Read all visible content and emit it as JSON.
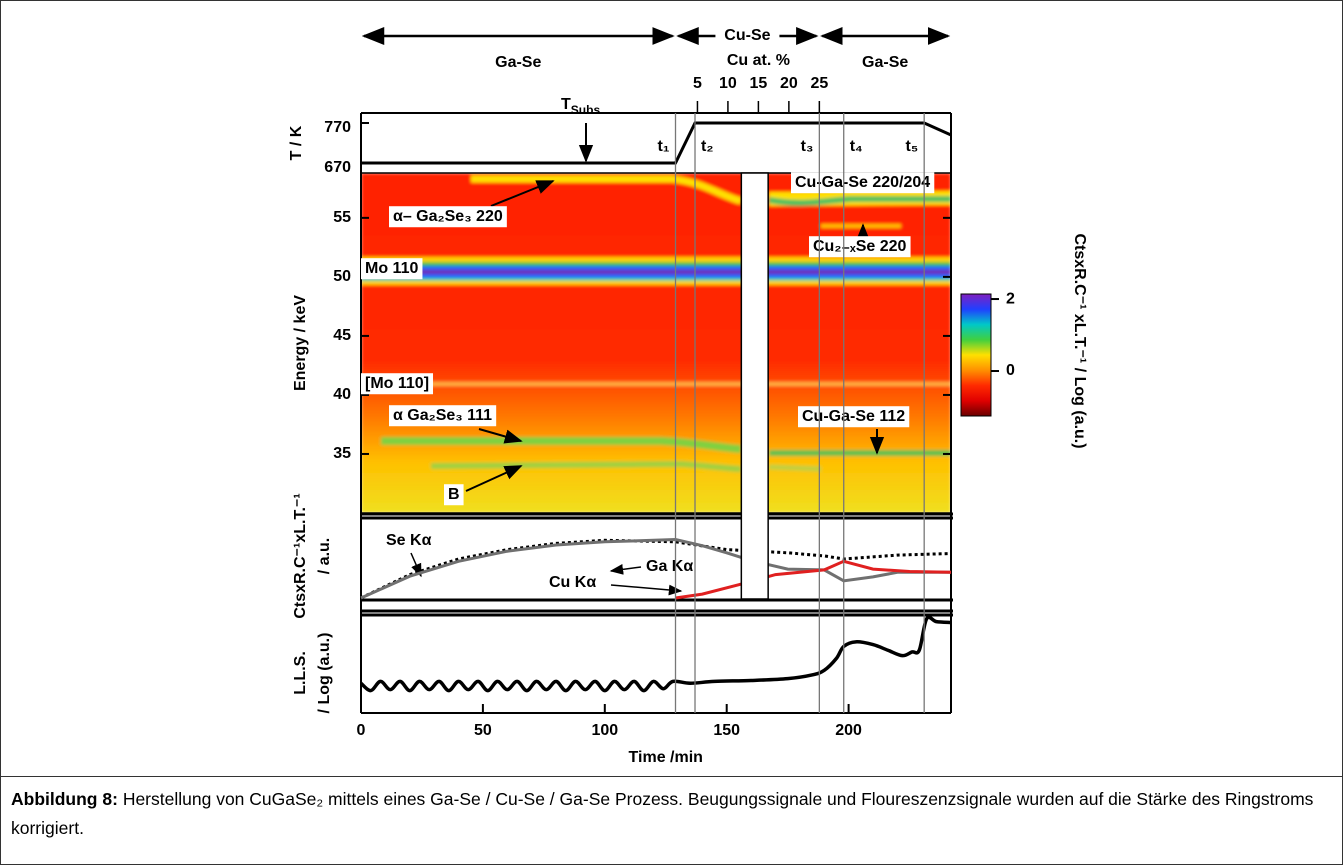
{
  "chart_data": {
    "type": "heatmap",
    "xlabel": "Time /min",
    "xlim": [
      0,
      242
    ],
    "xticks": [
      0,
      50,
      100,
      150,
      200
    ],
    "ylabel": "Energy / keV",
    "ylim": [
      30,
      58.8
    ],
    "yticks": [
      35,
      40,
      45,
      50,
      55
    ],
    "colorbar": {
      "label": "CtsxR.C⁻¹ xL.T.⁻¹ / Log (a.u.)",
      "lim": [
        -1.25,
        2.14
      ],
      "ticks": [
        0,
        2
      ],
      "colors": [
        "#6a0000",
        "#e00000",
        "#ff2a00",
        "#ff9000",
        "#ffe000",
        "#40d040",
        "#00c8c8",
        "#2040ff",
        "#8020c0"
      ]
    },
    "annotations": [
      "Cu-Ga-Se 220/204",
      "Cu₂₋ₓSe 220",
      "Mo 110",
      "[Mo 110]",
      "α– Ga₂Se₃ 220",
      "α Ga₂Se₃  111",
      "B",
      "Cu-Ga-Se 112"
    ],
    "gap": [
      156,
      167
    ]
  },
  "phases": [
    {
      "label": "Ga-Se",
      "start": 0,
      "end": 129
    },
    {
      "label": "Cu-Se",
      "start": 129,
      "end": 188
    },
    {
      "label": "Ga-Se",
      "start": 188,
      "end": 242
    }
  ],
  "cu_at_percent": {
    "label": "Cu at. %",
    "x2lim": [
      -50.2,
      46.6
    ],
    "x2ticks": [
      5,
      10,
      15,
      20,
      25
    ]
  },
  "events": [
    {
      "label": "t₁",
      "time": 129
    },
    {
      "label": "t₂",
      "time": 137
    },
    {
      "label": "t₃",
      "time": 188
    },
    {
      "label": "t₄",
      "time": 198
    },
    {
      "label": "t₅",
      "time": 231
    }
  ],
  "temperature": {
    "ylabel": "T / K",
    "ylim": [
      645,
      795
    ],
    "yticks": [
      670,
      770
    ],
    "t_subs": {
      "text": "T",
      "sub": "Subs."
    },
    "x": [
      0,
      129,
      137,
      231,
      242
    ],
    "values": [
      670,
      670,
      770,
      770,
      740
    ],
    "color": "#000000"
  },
  "fluorescence": {
    "ylabel": [
      "CtsxR.C⁻¹xL.T.⁻¹",
      "/ a.u."
    ],
    "ylim": [
      0,
      1
    ],
    "series": [
      {
        "name": "Se Kα",
        "color": "#000000",
        "dash": true,
        "x": [
          0,
          20,
          40,
          60,
          80,
          100,
          129,
          150,
          175,
          190,
          198,
          220,
          242
        ],
        "values": [
          0,
          0.3,
          0.5,
          0.62,
          0.7,
          0.74,
          0.72,
          0.62,
          0.58,
          0.54,
          0.5,
          0.55,
          0.57
        ]
      },
      {
        "name": "Ga Kα",
        "color": "#707070",
        "dash": false,
        "x": [
          0,
          20,
          40,
          60,
          80,
          100,
          120,
          129,
          140,
          150,
          160,
          175,
          190,
          198,
          210,
          220,
          242
        ],
        "values": [
          0,
          0.28,
          0.47,
          0.6,
          0.68,
          0.72,
          0.74,
          0.75,
          0.67,
          0.58,
          0.48,
          0.37,
          0.36,
          0.22,
          0.27,
          0.33,
          0.33
        ]
      },
      {
        "name": "Cu Kα",
        "color": "#e02020",
        "dash": false,
        "x": [
          129,
          140,
          155,
          170,
          190,
          198,
          210,
          225,
          242
        ],
        "values": [
          0,
          0.05,
          0.17,
          0.3,
          0.36,
          0.47,
          0.37,
          0.34,
          0.33
        ]
      }
    ]
  },
  "lls": {
    "ylabel": [
      "L.L.S.",
      "/ Log (a.u.)"
    ],
    "ylim": [
      0,
      1
    ],
    "color": "#000000",
    "x": [
      0,
      4,
      8,
      12,
      16,
      20,
      24,
      28,
      32,
      36,
      40,
      44,
      48,
      52,
      56,
      60,
      64,
      68,
      72,
      76,
      80,
      84,
      88,
      92,
      96,
      100,
      104,
      108,
      112,
      116,
      120,
      124,
      128,
      135,
      145,
      160,
      175,
      185,
      190,
      195,
      198,
      203,
      210,
      216,
      222,
      226,
      229,
      232,
      236,
      242
    ],
    "values": [
      0.28,
      0.2,
      0.3,
      0.21,
      0.3,
      0.2,
      0.3,
      0.21,
      0.3,
      0.2,
      0.3,
      0.21,
      0.3,
      0.2,
      0.3,
      0.21,
      0.3,
      0.2,
      0.3,
      0.21,
      0.3,
      0.2,
      0.3,
      0.21,
      0.3,
      0.2,
      0.3,
      0.21,
      0.3,
      0.2,
      0.3,
      0.22,
      0.3,
      0.28,
      0.3,
      0.31,
      0.33,
      0.37,
      0.42,
      0.55,
      0.68,
      0.73,
      0.7,
      0.64,
      0.58,
      0.62,
      0.64,
      0.98,
      0.95,
      0.94
    ]
  },
  "caption": {
    "label": "Abbildung 8:",
    "text": "Herstellung von CuGaSe₂ mittels eines Ga-Se / Cu-Se / Ga-Se Prozess. Beugungssignale und Floureszenzsignale wurden auf die Stärke des Ringstroms korrigiert."
  }
}
